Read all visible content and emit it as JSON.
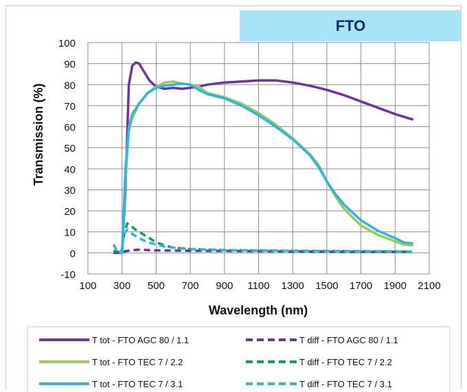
{
  "header": {
    "title": "FTO"
  },
  "chart_data": {
    "type": "line",
    "xlabel": "Wavelength (nm)",
    "ylabel": "Transmission (%)",
    "xlim": [
      100,
      2100
    ],
    "ylim": [
      -10,
      100
    ],
    "xticks": [
      100,
      300,
      500,
      700,
      900,
      1100,
      1300,
      1500,
      1700,
      1900,
      2100
    ],
    "yticks": [
      -10,
      0,
      10,
      20,
      30,
      40,
      50,
      60,
      70,
      80,
      90,
      100
    ],
    "grid": true,
    "legend_position": "bottom",
    "series": [
      {
        "name": "T tot - FTO AGC 80 / 1.1",
        "color": "#7030a0",
        "dash": "solid",
        "x": [
          300,
          320,
          340,
          360,
          380,
          400,
          430,
          460,
          500,
          550,
          600,
          650,
          700,
          750,
          800,
          900,
          1000,
          1100,
          1200,
          1300,
          1400,
          1500,
          1600,
          1700,
          1800,
          1900,
          2000
        ],
        "y": [
          0,
          30,
          80,
          89,
          90.5,
          90,
          86,
          82,
          79,
          78,
          78.5,
          78,
          78.5,
          79,
          80,
          81,
          81.5,
          82,
          82,
          81,
          79.5,
          77.5,
          75,
          72,
          69,
          66,
          63.5
        ]
      },
      {
        "name": "T diff - FTO AGC 80 / 1.1",
        "color": "#7030a0",
        "dash": "dashed",
        "x": [
          250,
          280,
          300,
          320,
          360,
          400,
          500,
          700,
          900,
          1100,
          1300,
          1500,
          1700,
          1900,
          2000
        ],
        "y": [
          0,
          0,
          0,
          0.8,
          1.3,
          1.5,
          1.2,
          1,
          0.9,
          0.8,
          0.7,
          0.6,
          0.5,
          0.5,
          0.5
        ]
      },
      {
        "name": "T tot - FTO TEC 7 / 2.2",
        "color": "#92d050",
        "dash": "solid",
        "x": [
          300,
          320,
          340,
          360,
          400,
          450,
          500,
          550,
          600,
          650,
          700,
          750,
          800,
          900,
          1000,
          1100,
          1200,
          1300,
          1400,
          1450,
          1500,
          1550,
          1600,
          1700,
          1800,
          1900,
          1950,
          2000
        ],
        "y": [
          0,
          35,
          58,
          64,
          71,
          76,
          79,
          81,
          81.5,
          80.5,
          80,
          79,
          76,
          74,
          71,
          66.5,
          61,
          54.5,
          47,
          42,
          34,
          27,
          21,
          13,
          8.5,
          5.5,
          4,
          3.5
        ]
      },
      {
        "name": "T diff - FTO TEC 7 / 2.2",
        "color": "#00a651",
        "dash": "dashed",
        "x": [
          250,
          280,
          300,
          310,
          330,
          350,
          380,
          420,
          460,
          500,
          550,
          600,
          700,
          900,
          1100,
          1300,
          1500,
          1700,
          1900,
          2000
        ],
        "y": [
          1,
          0.5,
          2,
          8,
          14,
          13,
          11,
          9,
          7,
          5,
          3.5,
          2.5,
          1.8,
          1.3,
          1.1,
          1,
          0.9,
          0.8,
          0.7,
          0.6
        ]
      },
      {
        "name": "T tot - FTO TEC 7 / 3.1",
        "color": "#2bb5e8",
        "dash": "solid",
        "x": [
          300,
          320,
          340,
          360,
          400,
          450,
          500,
          550,
          600,
          650,
          700,
          750,
          800,
          900,
          1000,
          1100,
          1200,
          1300,
          1400,
          1450,
          1500,
          1550,
          1600,
          1700,
          1800,
          1900,
          1950,
          2000
        ],
        "y": [
          0,
          40,
          60,
          66,
          71,
          76,
          78.5,
          79.5,
          80,
          80.5,
          80,
          77.5,
          75.5,
          73.5,
          70,
          65.5,
          60,
          54,
          46.5,
          41,
          34,
          28,
          23,
          15.5,
          10.5,
          7,
          5,
          4.5
        ]
      },
      {
        "name": "T diff - FTO TEC 7 / 3.1",
        "color": "#2bb5e8",
        "dash": "dashed",
        "x": [
          250,
          270,
          290,
          300,
          310,
          330,
          360,
          400,
          450,
          500,
          550,
          600,
          700,
          900,
          1100,
          1300,
          1500,
          1700,
          1900,
          2000
        ],
        "y": [
          4,
          1,
          0,
          2,
          9,
          11,
          9,
          7,
          5,
          4,
          3,
          2.5,
          1.8,
          1.3,
          1.1,
          1,
          0.9,
          0.8,
          0.7,
          0.7
        ]
      }
    ]
  }
}
